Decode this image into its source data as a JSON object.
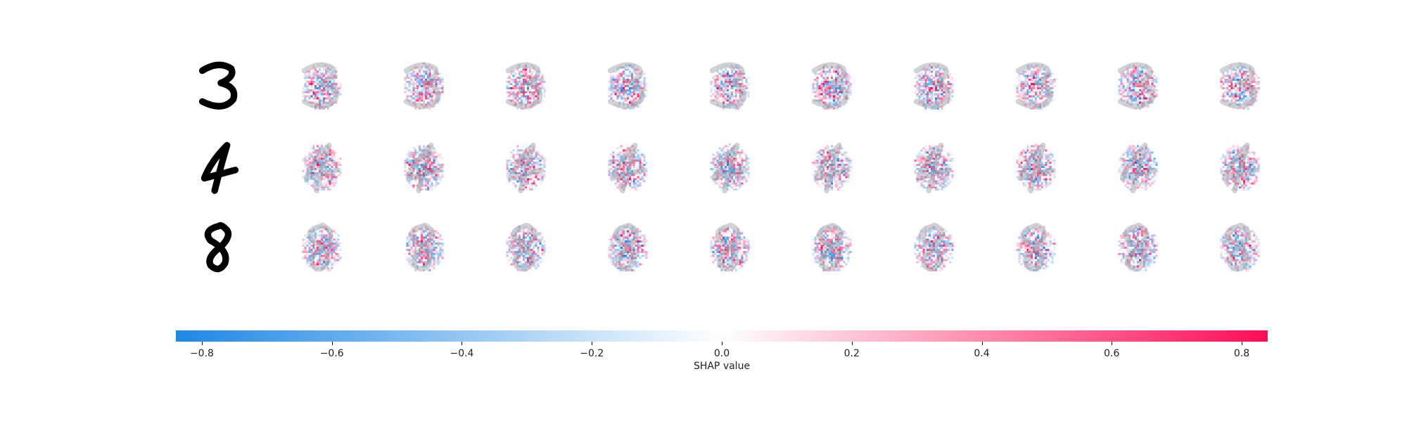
{
  "chart_data": {
    "type": "heatmap",
    "description_rows": [
      "3",
      "4",
      "8"
    ],
    "explanation_columns_per_row": 10,
    "colorbar": {
      "label": "SHAP value",
      "ticks": [
        "−0.8",
        "−0.6",
        "−0.4",
        "−0.2",
        "0.0",
        "0.2",
        "0.4",
        "0.6",
        "0.8"
      ],
      "tick_values": [
        -0.8,
        -0.6,
        -0.4,
        -0.2,
        0.0,
        0.2,
        0.4,
        0.6,
        0.8
      ],
      "range": [
        -0.84,
        0.84
      ],
      "negative_color": "#1e88e5",
      "zero_color": "#ffffff",
      "positive_color": "#ff0d57"
    }
  }
}
